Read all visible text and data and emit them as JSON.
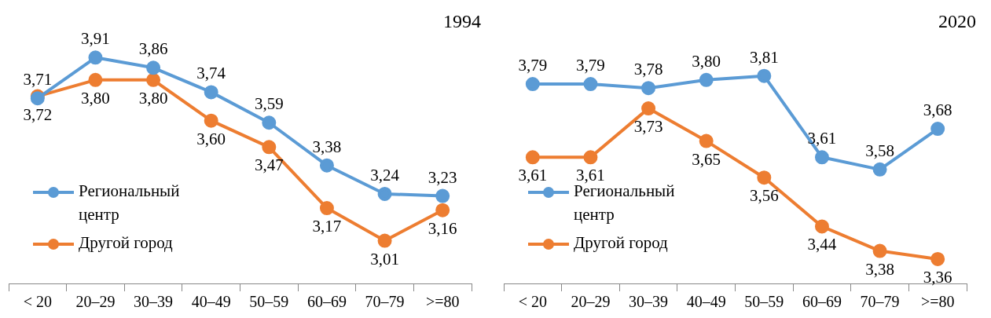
{
  "chart_data": [
    {
      "type": "line",
      "title": "1994",
      "categories": [
        "< 20",
        "20–29",
        "30–39",
        "40–49",
        "50–59",
        "60–69",
        "70–79",
        ">=80"
      ],
      "legend": "left",
      "marker": "circle",
      "data_labels": true,
      "grid": false,
      "series": [
        {
          "name": "Региональный центр",
          "color": "#5b9bd5",
          "values": [
            3.71,
            3.91,
            3.86,
            3.74,
            3.59,
            3.38,
            3.24,
            3.23
          ],
          "value_labels": [
            "3,71",
            "3,91",
            "3,86",
            "3,74",
            "3,59",
            "3,38",
            "3,24",
            "3,23"
          ]
        },
        {
          "name": "Другой город",
          "color": "#ed7d31",
          "values": [
            3.72,
            3.8,
            3.8,
            3.6,
            3.47,
            3.17,
            3.01,
            3.16
          ],
          "value_labels": [
            "3,72",
            "3,80",
            "3,80",
            "3,60",
            "3,47",
            "3,17",
            "3,01",
            "3,16"
          ]
        }
      ]
    },
    {
      "type": "line",
      "title": "2020",
      "categories": [
        "< 20",
        "20–29",
        "30–39",
        "40–49",
        "50–59",
        "60–69",
        "70–79",
        ">=80"
      ],
      "legend": "left",
      "marker": "circle",
      "data_labels": true,
      "grid": false,
      "series": [
        {
          "name": "Региональный центр",
          "color": "#5b9bd5",
          "values": [
            3.79,
            3.79,
            3.78,
            3.8,
            3.81,
            3.61,
            3.58,
            3.68
          ],
          "value_labels": [
            "3,79",
            "3,79",
            "3,78",
            "3,80",
            "3,81",
            "3,61",
            "3,58",
            "3,68"
          ]
        },
        {
          "name": "Другой город",
          "color": "#ed7d31",
          "values": [
            3.61,
            3.61,
            3.73,
            3.65,
            3.56,
            3.44,
            3.38,
            3.36
          ],
          "value_labels": [
            "3,61",
            "3,61",
            "3,73",
            "3,65",
            "3,56",
            "3,44",
            "3,38",
            "3,36"
          ]
        }
      ]
    }
  ]
}
